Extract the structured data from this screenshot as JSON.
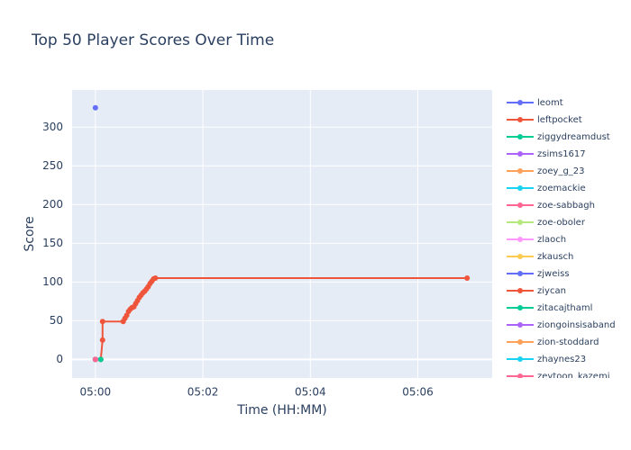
{
  "chart_data": {
    "type": "line",
    "title": "Top 50 Player Scores Over Time",
    "x_label": "Time (HH:MM)",
    "y_label": "Score",
    "xlim": [
      "04:59:34",
      "05:07:23"
    ],
    "xticks": [
      "05:00",
      "05:02",
      "05:04",
      "05:06"
    ],
    "ylim": [
      -24,
      348
    ],
    "yticks": [
      0,
      50,
      100,
      150,
      200,
      250,
      300
    ],
    "grid": true,
    "legend": "right",
    "series": [
      {
        "name": "leomt",
        "color": "#636efa",
        "x": [
          "05:00:00"
        ],
        "values": [
          325
        ]
      },
      {
        "name": "leftpocket",
        "color": "#EF553B",
        "x": [
          "05:00:06",
          "05:00:08",
          "05:00:08",
          "05:00:31",
          "05:00:33",
          "05:00:35",
          "05:00:37",
          "05:00:39",
          "05:00:41",
          "05:00:43",
          "05:00:45",
          "05:00:47",
          "05:00:49",
          "05:00:51",
          "05:00:53",
          "05:00:55",
          "05:00:57",
          "05:00:59",
          "05:01:01",
          "05:01:03",
          "05:01:05",
          "05:01:07",
          "05:06:55"
        ],
        "values": [
          0,
          25,
          49,
          49,
          53,
          57,
          62,
          65,
          67,
          68,
          72,
          76,
          80,
          83,
          86,
          88,
          91,
          94,
          98,
          101,
          104,
          105,
          105
        ]
      },
      {
        "name": "ziggydreamdust",
        "color": "#00cc96",
        "x": [
          "05:00:06"
        ],
        "values": [
          0
        ]
      },
      {
        "name": "zsims1617",
        "color": "#ab63fa",
        "x": [
          "05:00:00"
        ],
        "values": [
          0
        ]
      },
      {
        "name": "zoey_g_23",
        "color": "#FFA15A",
        "x": [
          "05:00:00"
        ],
        "values": [
          0
        ]
      },
      {
        "name": "zoemackie",
        "color": "#19d3f3",
        "x": [
          "05:00:00"
        ],
        "values": [
          0
        ]
      },
      {
        "name": "zoe-sabbagh",
        "color": "#FF6692",
        "x": [
          "05:00:00"
        ],
        "values": [
          0
        ]
      },
      {
        "name": "zoe-oboler",
        "color": "#B6E880",
        "x": [
          "05:00:00"
        ],
        "values": [
          0
        ]
      },
      {
        "name": "zlaoch",
        "color": "#FF97FF",
        "x": [
          "05:00:00"
        ],
        "values": [
          0
        ]
      },
      {
        "name": "zkausch",
        "color": "#FECB52",
        "x": [
          "05:00:00"
        ],
        "values": [
          0
        ]
      },
      {
        "name": "zjweiss",
        "color": "#636efa",
        "x": [
          "05:00:00"
        ],
        "values": [
          0
        ]
      },
      {
        "name": "ziycan",
        "color": "#EF553B",
        "x": [
          "05:00:00"
        ],
        "values": [
          0
        ]
      },
      {
        "name": "zitacajthaml",
        "color": "#00cc96",
        "x": [
          "05:00:00"
        ],
        "values": [
          0
        ]
      },
      {
        "name": "ziongoinsisaband",
        "color": "#ab63fa",
        "x": [
          "05:00:00"
        ],
        "values": [
          0
        ]
      },
      {
        "name": "zion-stoddard",
        "color": "#FFA15A",
        "x": [
          "05:00:00"
        ],
        "values": [
          0
        ]
      },
      {
        "name": "zhaynes23",
        "color": "#19d3f3",
        "x": [
          "05:00:00"
        ],
        "values": [
          0
        ]
      },
      {
        "name": "zeytoon_kazemi",
        "color": "#FF6692",
        "x": [
          "05:00:00"
        ],
        "values": [
          0
        ]
      }
    ]
  }
}
